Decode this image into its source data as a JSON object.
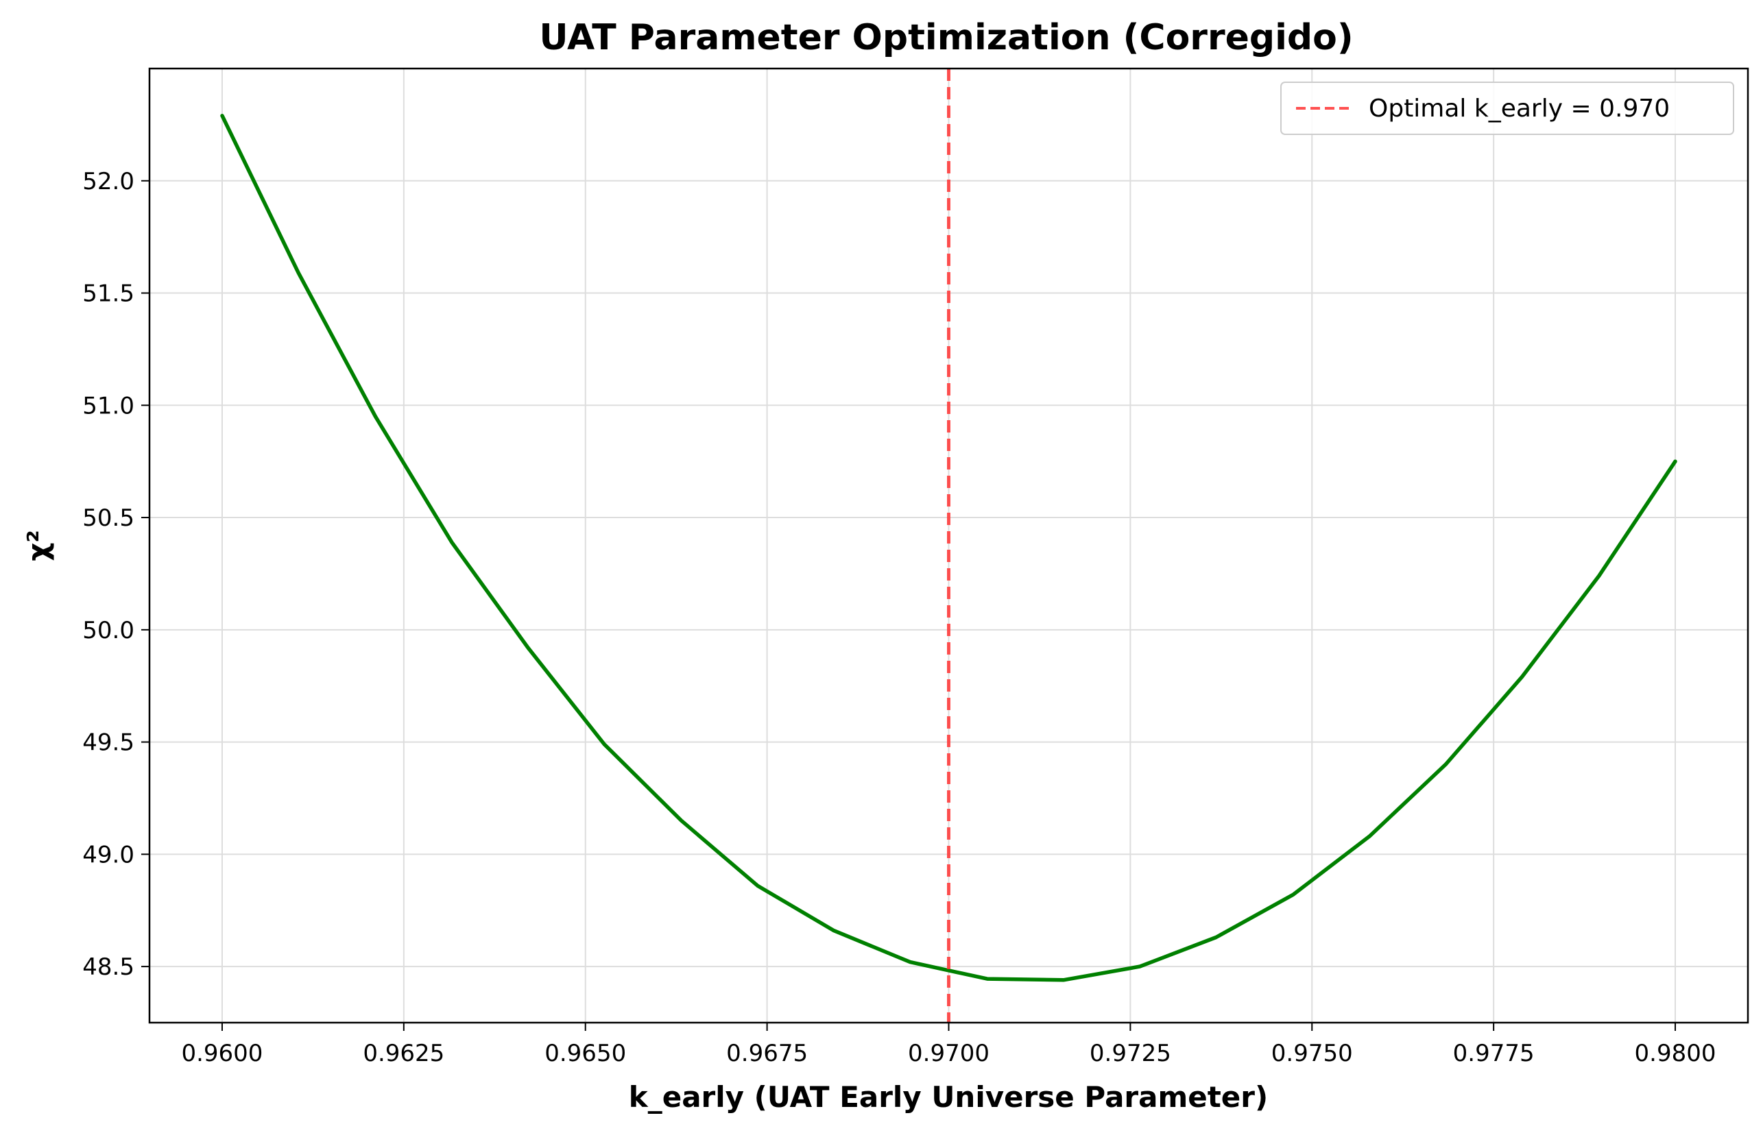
{
  "chart_data": {
    "type": "line",
    "title": "UAT Parameter Optimization (Corregido)",
    "xlabel": "k_early (UAT Early Universe Parameter)",
    "ylabel": "χ²",
    "xlim": [
      0.959,
      0.981
    ],
    "ylim": [
      48.25,
      52.5
    ],
    "xticks": [
      0.96,
      0.9625,
      0.965,
      0.9675,
      0.97,
      0.9725,
      0.975,
      0.9775,
      0.98
    ],
    "xtick_labels": [
      "0.9600",
      "0.9625",
      "0.9650",
      "0.9675",
      "0.9700",
      "0.9725",
      "0.9750",
      "0.9775",
      "0.9800"
    ],
    "yticks": [
      48.5,
      49.0,
      49.5,
      50.0,
      50.5,
      51.0,
      51.5,
      52.0
    ],
    "ytick_labels": [
      "48.5",
      "49.0",
      "49.5",
      "50.0",
      "50.5",
      "51.0",
      "51.5",
      "52.0"
    ],
    "grid": true,
    "legend_position": "top-right",
    "series": [
      {
        "name": "",
        "color": "#008000",
        "x": [
          0.96,
          0.96105,
          0.96211,
          0.96316,
          0.96421,
          0.96526,
          0.96632,
          0.96737,
          0.96842,
          0.96947,
          0.97053,
          0.97158,
          0.97263,
          0.97368,
          0.97474,
          0.97579,
          0.97684,
          0.97789,
          0.97895,
          0.98
        ],
        "y": [
          52.29,
          51.59,
          50.95,
          50.39,
          49.92,
          49.49,
          49.15,
          48.86,
          48.66,
          48.52,
          48.445,
          48.44,
          48.5,
          48.63,
          48.82,
          49.08,
          49.4,
          49.79,
          50.24,
          50.75
        ]
      }
    ],
    "vline": {
      "x": 0.97,
      "color": "#ff3333",
      "style": "dashed",
      "label": "Optimal k_early = 0.970"
    }
  }
}
